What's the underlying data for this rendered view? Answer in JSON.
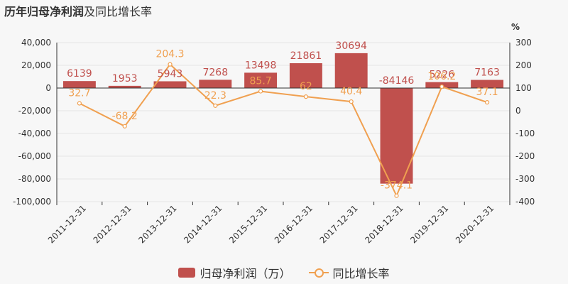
{
  "title": {
    "bold": "历年归母净利润",
    "rest": "及同比增长率"
  },
  "colors": {
    "bar": "#c0504d",
    "line": "#f0a050",
    "grid": "#e6e6e6",
    "axis": "#333333"
  },
  "chart_data": {
    "type": "bar",
    "categories": [
      "2011-12-31",
      "2012-12-31",
      "2013-12-31",
      "2014-12-31",
      "2015-12-31",
      "2016-12-31",
      "2017-12-31",
      "2018-12-31",
      "2019-12-31",
      "2020-12-31"
    ],
    "series": [
      {
        "name": "归母净利润（万）",
        "type": "bar",
        "axis": "left",
        "values": [
          6139,
          1953,
          5943,
          7268,
          13498,
          21861,
          30694,
          -84146,
          5226,
          7163
        ],
        "labels": [
          "6139",
          "1953",
          "5943",
          "7268",
          "13498",
          "21861",
          "30694",
          "-84146",
          "5226",
          "7163"
        ]
      },
      {
        "name": "同比增长率",
        "type": "line",
        "axis": "right",
        "values": [
          32.7,
          -68.2,
          204.3,
          22.3,
          85.7,
          62,
          40.4,
          -374.1,
          106.2,
          37.1
        ],
        "labels": [
          "32.7",
          "-68.2",
          "204.3",
          "22.3",
          "85.7",
          "62",
          "40.4",
          "-374.1",
          "106.2",
          "37.1"
        ]
      }
    ],
    "left_axis": {
      "min": -100000,
      "max": 40000,
      "ticks": [
        40000,
        20000,
        0,
        -20000,
        -40000,
        -60000,
        -80000,
        -100000
      ],
      "tick_labels": [
        "40,000",
        "20,000",
        "0",
        "-20,000",
        "-40,000",
        "-60,000",
        "-80,000",
        "-100,000"
      ]
    },
    "right_axis": {
      "unit": "%",
      "min": -400,
      "max": 300,
      "ticks": [
        300,
        200,
        100,
        0,
        -100,
        -200,
        -300,
        -400
      ],
      "tick_labels": [
        "300",
        "200",
        "100",
        "0",
        "-100",
        "-200",
        "-300",
        "-400"
      ]
    },
    "grid": true,
    "legend_position": "bottom"
  }
}
